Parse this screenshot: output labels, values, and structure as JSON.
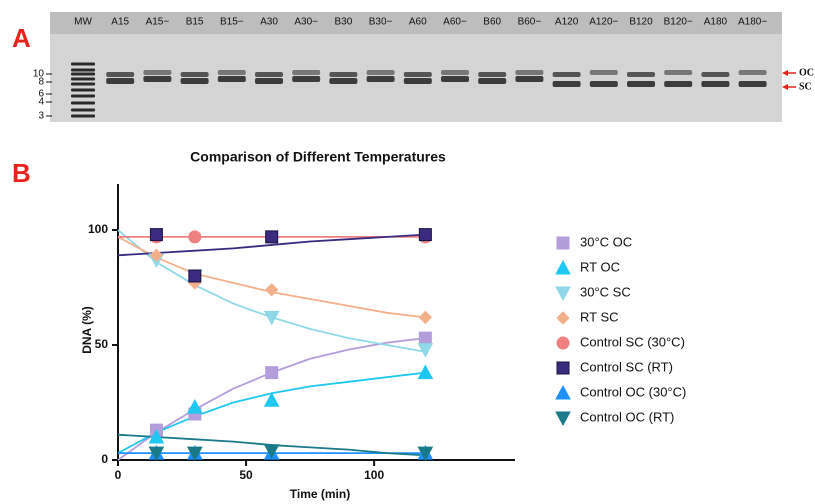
{
  "panel_a": {
    "label": "A",
    "lanes": [
      "MW",
      "A15",
      "A15−",
      "B15",
      "B15−",
      "A30",
      "A30−",
      "B30",
      "B30−",
      "A60",
      "A60−",
      "B60",
      "B60−",
      "A120",
      "A120−",
      "B120",
      "B120−",
      "A180",
      "A180−"
    ],
    "ladder": [
      "10",
      "8",
      "6",
      "4",
      "3"
    ],
    "markers": [
      "OC",
      "SC"
    ]
  },
  "chart_data": {
    "type": "line",
    "panel_label": "B",
    "title": "Comparison of Different Temperatures",
    "x_label": "Time (min)",
    "y_label": "DNA (%)",
    "x": [
      15,
      30,
      60,
      120
    ],
    "xlim": [
      0,
      155
    ],
    "xticks": [
      0,
      50,
      100
    ],
    "ylim": [
      0,
      120
    ],
    "yticks": [
      0,
      50,
      100
    ],
    "fit_x": [
      0,
      15,
      30,
      45,
      60,
      75,
      90,
      105,
      120
    ],
    "series": [
      {
        "name": "30°C OC",
        "color": "#b39ddb",
        "marker": "square",
        "values": [
          13,
          20,
          38,
          53
        ],
        "fit": [
          0,
          12,
          22,
          31,
          38,
          44,
          48,
          51,
          53
        ]
      },
      {
        "name": "RT OC",
        "color": "#1ec8f0",
        "marker": "triangle",
        "values": [
          10,
          23,
          26,
          38
        ],
        "fit": [
          3,
          12,
          19,
          25,
          29,
          32,
          34,
          36,
          38
        ]
      },
      {
        "name": "30°C SC",
        "color": "#8fd8e8",
        "marker": "down-triangle",
        "values": [
          87,
          80,
          62,
          48
        ],
        "fit": [
          100,
          86,
          76,
          68,
          62,
          57,
          53,
          50,
          47
        ]
      },
      {
        "name": "RT SC",
        "color": "#f4b08a",
        "marker": "diamond",
        "values": [
          89,
          77,
          74,
          62
        ],
        "fit": [
          97,
          88,
          81,
          77,
          73,
          70,
          67,
          64,
          62
        ]
      },
      {
        "name": "Control SC (30°C)",
        "color": "#f08080",
        "marker": "circle",
        "values": [
          97,
          97,
          97,
          97
        ],
        "fit": [
          97,
          97,
          97,
          97,
          97,
          97,
          97,
          97,
          97
        ]
      },
      {
        "name": "Control SC (RT)",
        "color": "#3a2a80",
        "marker": "square",
        "values": [
          98,
          80,
          97,
          98
        ],
        "fit": [
          89,
          90,
          91,
          92,
          93.5,
          95,
          96,
          97,
          98
        ]
      },
      {
        "name": "Control OC (30°C)",
        "color": "#1e90ff",
        "marker": "triangle",
        "values": [
          3,
          3,
          3,
          3
        ],
        "fit": [
          3,
          3,
          3,
          3,
          3,
          3,
          3,
          3,
          3
        ]
      },
      {
        "name": "Control OC (RT)",
        "color": "#1a7a8a",
        "marker": "down-triangle",
        "values": [
          3,
          3,
          4,
          3
        ],
        "fit": [
          11,
          10,
          9,
          8,
          6.5,
          5.5,
          4.5,
          3,
          2
        ]
      }
    ]
  }
}
